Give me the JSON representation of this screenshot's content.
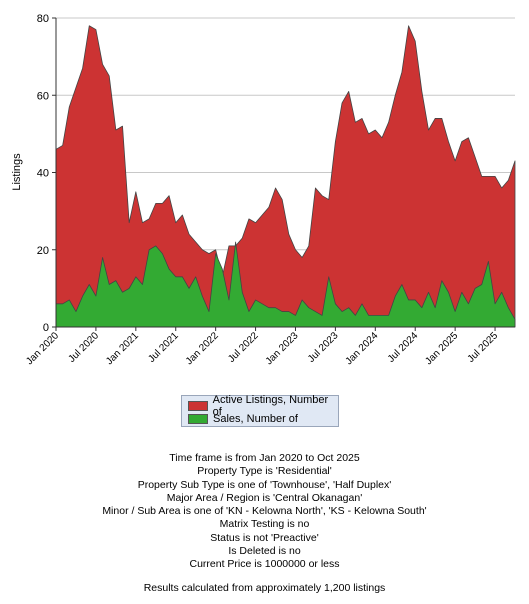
{
  "chart_data": {
    "type": "area",
    "ylabel": "Listings",
    "ylim": [
      0,
      80
    ],
    "yticks": [
      "0",
      "20",
      "40",
      "60",
      "80"
    ],
    "xlim": [
      "2020-01",
      "2025-10"
    ],
    "xtick_labels": [
      "Jan 2020",
      "Jul 2020",
      "Jan 2021",
      "Jul 2021",
      "Jan 2022",
      "Jul 2022",
      "Jan 2023",
      "Jul 2023",
      "Jan 2024",
      "Jul 2024",
      "Jan 2025",
      "Jul 2025"
    ],
    "xtick_months": [
      "2020-01",
      "2020-07",
      "2021-01",
      "2021-07",
      "2022-01",
      "2022-07",
      "2023-01",
      "2023-07",
      "2024-01",
      "2024-07",
      "2025-01",
      "2025-07"
    ],
    "grid": "horizontal",
    "months": [
      "2020-01",
      "2020-02",
      "2020-03",
      "2020-04",
      "2020-05",
      "2020-06",
      "2020-07",
      "2020-08",
      "2020-09",
      "2020-10",
      "2020-11",
      "2020-12",
      "2021-01",
      "2021-02",
      "2021-03",
      "2021-04",
      "2021-05",
      "2021-06",
      "2021-07",
      "2021-08",
      "2021-09",
      "2021-10",
      "2021-11",
      "2021-12",
      "2022-01",
      "2022-02",
      "2022-03",
      "2022-04",
      "2022-05",
      "2022-06",
      "2022-07",
      "2022-08",
      "2022-09",
      "2022-10",
      "2022-11",
      "2022-12",
      "2023-01",
      "2023-02",
      "2023-03",
      "2023-04",
      "2023-05",
      "2023-06",
      "2023-07",
      "2023-08",
      "2023-09",
      "2023-10",
      "2023-11",
      "2023-12",
      "2024-01",
      "2024-02",
      "2024-03",
      "2024-04",
      "2024-05",
      "2024-06",
      "2024-07",
      "2024-08",
      "2024-09",
      "2024-10",
      "2024-11",
      "2024-12",
      "2025-01",
      "2025-02",
      "2025-03",
      "2025-04",
      "2025-05",
      "2025-06",
      "2025-07",
      "2025-08",
      "2025-09",
      "2025-10"
    ],
    "series": [
      {
        "name": "Active Listings, Number of",
        "color": "#cc3333",
        "values": [
          46,
          47,
          57,
          62,
          67,
          78,
          77,
          68,
          65,
          51,
          52,
          27,
          35,
          27,
          28,
          32,
          32,
          34,
          27,
          29,
          24,
          22,
          20,
          19,
          20,
          13,
          21,
          21,
          23,
          28,
          27,
          29,
          31,
          36,
          33,
          24,
          20,
          18,
          21,
          36,
          34,
          33,
          48,
          58,
          61,
          53,
          54,
          50,
          51,
          49,
          53,
          60,
          66,
          78,
          74,
          61,
          51,
          54,
          54,
          48,
          43,
          48,
          49,
          44,
          39,
          39,
          39,
          36,
          38,
          43
        ]
      },
      {
        "name": "Sales, Number of",
        "color": "#33aa33",
        "values": [
          6,
          6,
          7,
          4,
          8,
          11,
          8,
          18,
          11,
          12,
          9,
          10,
          13,
          11,
          20,
          21,
          19,
          15,
          13,
          13,
          10,
          13,
          8,
          4,
          19,
          15,
          7,
          22,
          9,
          4,
          7,
          6,
          5,
          5,
          4,
          4,
          3,
          7,
          5,
          4,
          3,
          13,
          6,
          4,
          5,
          3,
          6,
          3,
          3,
          3,
          3,
          8,
          11,
          7,
          7,
          5,
          9,
          5,
          12,
          9,
          4,
          9,
          6,
          10,
          11,
          17,
          6,
          9,
          5,
          2
        ]
      }
    ],
    "legend": "bottom-center"
  },
  "legend": {
    "active_label": "Active Listings, Number of",
    "sales_label": "Sales, Number of"
  },
  "criteria": [
    "Time frame is from Jan 2020 to Oct 2025",
    "Property Type is 'Residential'",
    "Property Sub Type is one of 'Townhouse', 'Half Duplex'",
    "Major Area / Region is 'Central Okanagan'",
    "Minor / Sub Area is one of 'KN - Kelowna North', 'KS - Kelowna South'",
    "Matrix Testing is no",
    "Status is not 'Preactive'",
    "Is Deleted is no",
    "Current Price is 1000000 or less"
  ],
  "results_note": "Results calculated from approximately 1,200 listings"
}
